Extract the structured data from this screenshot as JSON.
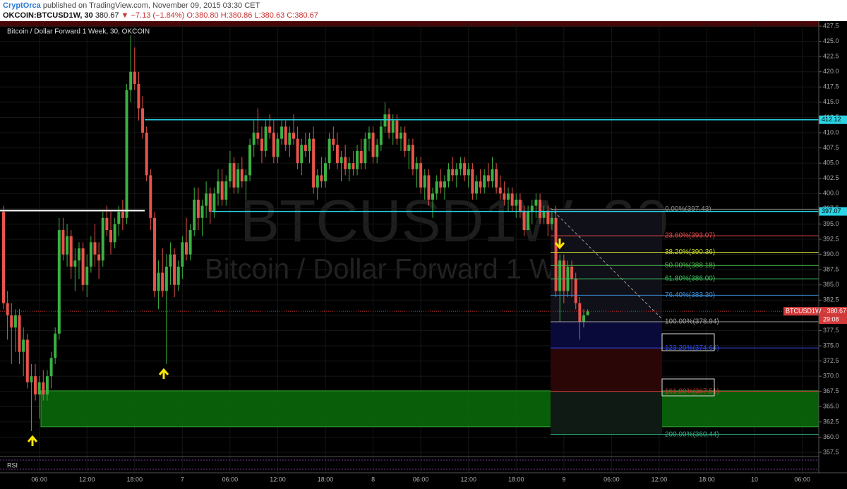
{
  "header": {
    "publisher": "CryptOrca",
    "published": "published on TradingView.com, November 09, 2015 03:30 CET"
  },
  "quote": {
    "symbol": "OKCOIN:BTCUSD1W, 30",
    "last": "380.67",
    "change": "▼ −7.13 (−1.84%)",
    "ohlc": "O:380.80 H:380.86 L:380.63 C:380.67"
  },
  "chart_data": {
    "type": "candlestick",
    "title": "Bitcoin / Dollar Forward 1 Week, 30, OKCOIN",
    "watermark": [
      "BTCUSD1W, 30",
      "Bitcoin / Dollar Forward 1 Week"
    ],
    "up_color": "#3cb043",
    "down_color": "#e8534a",
    "categories": [
      null,
      null,
      null,
      null,
      null,
      null,
      null,
      null,
      null,
      "06:00",
      null,
      null,
      null,
      null,
      null,
      null,
      null,
      null,
      null,
      null,
      null,
      "12:00",
      null,
      null,
      null,
      null,
      null,
      null,
      null,
      null,
      null,
      null,
      null,
      "18:00",
      null,
      null,
      null,
      null,
      null,
      null,
      null,
      null,
      null,
      null,
      null,
      "7",
      null,
      null,
      null,
      null,
      null,
      null,
      null,
      null,
      null,
      null,
      null,
      "06:00",
      null,
      null,
      null,
      null,
      null,
      null,
      null,
      null,
      null,
      null,
      null,
      "12:00",
      null,
      null,
      null,
      null,
      null,
      null,
      null,
      null,
      null,
      null,
      null,
      "18:00",
      null,
      null,
      null,
      null,
      null,
      null,
      null,
      null,
      null,
      null,
      null,
      "8",
      null,
      null,
      null,
      null,
      null,
      null,
      null,
      null,
      null,
      null,
      null,
      "06:00",
      null,
      null,
      null,
      null,
      null,
      null,
      null,
      null,
      null,
      null,
      null,
      "12:00",
      null,
      null,
      null,
      null,
      null,
      null,
      null,
      null,
      null,
      null,
      null,
      "18:00",
      null,
      null,
      null,
      null,
      null,
      null,
      null,
      null,
      null,
      null,
      null,
      "9",
      null,
      null,
      null,
      null,
      null,
      null,
      null,
      null,
      null,
      null,
      null,
      "06:00",
      null,
      null,
      null,
      null,
      null,
      null,
      null,
      null,
      null,
      null,
      null,
      "12:00",
      null,
      null,
      null,
      null,
      null,
      null,
      null,
      null,
      null,
      null,
      null,
      "18:00",
      null,
      null,
      null,
      null,
      null,
      null,
      null,
      null,
      null,
      null,
      null,
      "10",
      null,
      null,
      null,
      null,
      null,
      null,
      null,
      null,
      null,
      null,
      null,
      "06:00",
      null,
      null,
      null
    ],
    "candles": [
      [
        397,
        398,
        381,
        382
      ],
      [
        382,
        384,
        376,
        380
      ],
      [
        380,
        382,
        372,
        378
      ],
      [
        378,
        381,
        374,
        380
      ],
      [
        380,
        381,
        372,
        374
      ],
      [
        374,
        378,
        370,
        376
      ],
      [
        376,
        377,
        368,
        369
      ],
      [
        369,
        372,
        361,
        370
      ],
      [
        370,
        372,
        366,
        367
      ],
      [
        367,
        370,
        363,
        369
      ],
      [
        369,
        371,
        366,
        367
      ],
      [
        367,
        371,
        366,
        370
      ],
      [
        370,
        374,
        368,
        373
      ],
      [
        373,
        378,
        372,
        377
      ],
      [
        377,
        396,
        376,
        394
      ],
      [
        394,
        396,
        389,
        390
      ],
      [
        390,
        395,
        388,
        393
      ],
      [
        393,
        394,
        386,
        388
      ],
      [
        388,
        391,
        384,
        389
      ],
      [
        389,
        392,
        386,
        391
      ],
      [
        391,
        392,
        384,
        385
      ],
      [
        385,
        390,
        383,
        388
      ],
      [
        388,
        393,
        387,
        392
      ],
      [
        392,
        395,
        388,
        390
      ],
      [
        390,
        392,
        386,
        389
      ],
      [
        389,
        397,
        388,
        396
      ],
      [
        396,
        398,
        393,
        394
      ],
      [
        394,
        397,
        390,
        392
      ],
      [
        392,
        396,
        391,
        395
      ],
      [
        395,
        398,
        393,
        397
      ],
      [
        397,
        399,
        394,
        396
      ],
      [
        396,
        418,
        395,
        417
      ],
      [
        417,
        426,
        415,
        420
      ],
      [
        420,
        424,
        417,
        418
      ],
      [
        418,
        420,
        412,
        414
      ],
      [
        414,
        416,
        409,
        410
      ],
      [
        410,
        411,
        402,
        403
      ],
      [
        403,
        404,
        394,
        396
      ],
      [
        396,
        397,
        383,
        384
      ],
      [
        384,
        389,
        381,
        387
      ],
      [
        387,
        391,
        383,
        384
      ],
      [
        384,
        390,
        372,
        388
      ],
      [
        388,
        392,
        385,
        390
      ],
      [
        390,
        391,
        383,
        385
      ],
      [
        385,
        389,
        384,
        388
      ],
      [
        388,
        393,
        386,
        392
      ],
      [
        392,
        396,
        389,
        390
      ],
      [
        390,
        395,
        389,
        394
      ],
      [
        394,
        401,
        393,
        399
      ],
      [
        399,
        401,
        394,
        396
      ],
      [
        396,
        399,
        393,
        398
      ],
      [
        398,
        402,
        396,
        400
      ],
      [
        400,
        401,
        395,
        397
      ],
      [
        397,
        401,
        396,
        400
      ],
      [
        400,
        404,
        398,
        402
      ],
      [
        402,
        404,
        398,
        399
      ],
      [
        399,
        403,
        398,
        402
      ],
      [
        402,
        407,
        401,
        405
      ],
      [
        405,
        406,
        400,
        401
      ],
      [
        401,
        405,
        400,
        404
      ],
      [
        404,
        406,
        401,
        402
      ],
      [
        402,
        404,
        399,
        403
      ],
      [
        403,
        409,
        402,
        408
      ],
      [
        408,
        412,
        406,
        410
      ],
      [
        410,
        414,
        408,
        409
      ],
      [
        409,
        411,
        405,
        407
      ],
      [
        407,
        412,
        406,
        411
      ],
      [
        411,
        413,
        409,
        410
      ],
      [
        410,
        412,
        405,
        406
      ],
      [
        406,
        410,
        405,
        409
      ],
      [
        409,
        412,
        408,
        411
      ],
      [
        411,
        412,
        407,
        408
      ],
      [
        408,
        411,
        406,
        410
      ],
      [
        410,
        413,
        408,
        409
      ],
      [
        409,
        411,
        404,
        405
      ],
      [
        405,
        409,
        403,
        408
      ],
      [
        408,
        410,
        406,
        407
      ],
      [
        407,
        410,
        405,
        409
      ],
      [
        409,
        411,
        400,
        401
      ],
      [
        401,
        404,
        399,
        403
      ],
      [
        403,
        406,
        401,
        402
      ],
      [
        402,
        406,
        401,
        405
      ],
      [
        405,
        410,
        404,
        409
      ],
      [
        409,
        411,
        407,
        408
      ],
      [
        408,
        410,
        404,
        405
      ],
      [
        405,
        407,
        402,
        406
      ],
      [
        406,
        408,
        403,
        404
      ],
      [
        404,
        406,
        402,
        405
      ],
      [
        405,
        407,
        403,
        404
      ],
      [
        404,
        408,
        403,
        407
      ],
      [
        407,
        409,
        404,
        405
      ],
      [
        405,
        410,
        404,
        409
      ],
      [
        409,
        411,
        407,
        410
      ],
      [
        410,
        411,
        405,
        406
      ],
      [
        406,
        409,
        405,
        408
      ],
      [
        408,
        412,
        407,
        411
      ],
      [
        411,
        415,
        410,
        413
      ],
      [
        413,
        414,
        409,
        410
      ],
      [
        410,
        413,
        408,
        412
      ],
      [
        412,
        413,
        408,
        409
      ],
      [
        409,
        411,
        407,
        410
      ],
      [
        410,
        411,
        406,
        407
      ],
      [
        407,
        409,
        404,
        408
      ],
      [
        408,
        409,
        403,
        404
      ],
      [
        404,
        406,
        401,
        405
      ],
      [
        405,
        406,
        400,
        401
      ],
      [
        401,
        404,
        399,
        403
      ],
      [
        403,
        404,
        398,
        399
      ],
      [
        399,
        401,
        396,
        400
      ],
      [
        400,
        403,
        399,
        402
      ],
      [
        402,
        404,
        400,
        401
      ],
      [
        401,
        403,
        399,
        402
      ],
      [
        402,
        405,
        401,
        404
      ],
      [
        404,
        406,
        402,
        403
      ],
      [
        403,
        405,
        401,
        404
      ],
      [
        404,
        406,
        403,
        405
      ],
      [
        405,
        406,
        402,
        403
      ],
      [
        403,
        405,
        401,
        404
      ],
      [
        404,
        405,
        399,
        400
      ],
      [
        400,
        403,
        399,
        402
      ],
      [
        402,
        404,
        400,
        401
      ],
      [
        401,
        404,
        400,
        403
      ],
      [
        403,
        405,
        401,
        402
      ],
      [
        402,
        406,
        401,
        404
      ],
      [
        404,
        405,
        400,
        401
      ],
      [
        401,
        403,
        399,
        400
      ],
      [
        400,
        402,
        398,
        399
      ],
      [
        399,
        401,
        397,
        400
      ],
      [
        400,
        401,
        397,
        398
      ],
      [
        398,
        400,
        396,
        399
      ],
      [
        399,
        400,
        396,
        397
      ],
      [
        397,
        398,
        393,
        394
      ],
      [
        394,
        398,
        394,
        397
      ],
      [
        397,
        399,
        395,
        398
      ],
      [
        398,
        400,
        396,
        399
      ],
      [
        399,
        400,
        395,
        396
      ],
      [
        396,
        398,
        395,
        397
      ],
      [
        397,
        398,
        393,
        395
      ],
      [
        395,
        397,
        394,
        396
      ],
      [
        396,
        398,
        383,
        384
      ],
      [
        384,
        390,
        379,
        389
      ],
      [
        389,
        390,
        382,
        384
      ],
      [
        384,
        389,
        383,
        388
      ],
      [
        388,
        389,
        383,
        386
      ],
      [
        386,
        387,
        381,
        382
      ],
      [
        382,
        383,
        376,
        379
      ],
      [
        379,
        381,
        378,
        380
      ],
      [
        380,
        381,
        380,
        380.67
      ],
      null,
      null,
      null,
      null,
      null,
      null,
      null,
      null,
      null,
      null,
      null,
      null,
      null,
      null,
      null,
      null,
      null,
      null,
      null,
      null,
      null,
      null,
      null,
      null,
      null,
      null,
      null,
      null,
      null,
      null,
      null,
      null,
      null,
      null,
      null,
      null,
      null,
      null,
      null,
      null,
      null,
      null,
      null,
      null,
      null,
      null,
      null,
      null,
      null,
      null,
      null,
      null,
      null,
      null,
      null,
      null,
      null
    ],
    "ylim": [
      357.04,
      428.08
    ],
    "yticks": [
      {
        "value": 427.5,
        "label": "427.5"
      },
      {
        "value": 425,
        "label": "425.0"
      },
      {
        "value": 422.5,
        "label": "422.5"
      },
      {
        "value": 420,
        "label": "420.0"
      },
      {
        "value": 417.5,
        "label": "417.5"
      },
      {
        "value": 415,
        "label": "415.0"
      },
      {
        "value": 412.5,
        "label": "412.5"
      },
      {
        "value": 410,
        "label": "410.0"
      },
      {
        "value": 407.5,
        "label": "407.5"
      },
      {
        "value": 405,
        "label": "405.0"
      },
      {
        "value": 402.5,
        "label": "402.5"
      },
      {
        "value": 400,
        "label": "400.0"
      },
      {
        "value": 397.5,
        "label": "397.5"
      },
      {
        "value": 395,
        "label": "395.0"
      },
      {
        "value": 392.5,
        "label": "392.5"
      },
      {
        "value": 390,
        "label": "390.0"
      },
      {
        "value": 387.5,
        "label": "387.5"
      },
      {
        "value": 385,
        "label": "385.0"
      },
      {
        "value": 382.5,
        "label": "382.5"
      },
      {
        "value": 380,
        "label": "380.0"
      },
      {
        "value": 377.5,
        "label": "377.5"
      },
      {
        "value": 375,
        "label": "375.0"
      },
      {
        "value": 372.5,
        "label": "372.5"
      },
      {
        "value": 370,
        "label": "370.0"
      },
      {
        "value": 367.5,
        "label": "367.5"
      },
      {
        "value": 365,
        "label": "365.0"
      },
      {
        "value": 362.5,
        "label": "362.5"
      },
      {
        "value": 360,
        "label": "360.0"
      },
      {
        "value": 357.5,
        "label": "357.5"
      }
    ],
    "grid": true,
    "levels": [
      {
        "price": 412.12,
        "label": "412.12",
        "color": "#2ad4e4"
      },
      {
        "price": 397.07,
        "label": "397.07",
        "color": "#2ad4e4"
      }
    ],
    "white_line": {
      "price": 397.2,
      "color": "#ffffff"
    },
    "last_price": {
      "price": 380.67,
      "label": "BTCUSD1W · 380.67",
      "countdown": "29:08",
      "color": "#d43a3a"
    },
    "zone": {
      "top": 367.6,
      "bottom": 361.7,
      "color": "#0a6e0a"
    },
    "fib": [
      {
        "price": 397.43,
        "label": "0.00%(397.43)",
        "color": "#8a8a8a"
      },
      {
        "price": 393.07,
        "label": "23.60%(393.07)",
        "color": "#e04848"
      },
      {
        "price": 390.36,
        "label": "38.20%(390.36)",
        "color": "#c8d82e"
      },
      {
        "price": 388.18,
        "label": "50.00%(388.18)",
        "color": "#4cc04c"
      },
      {
        "price": 386.0,
        "label": "61.80%(386.00)",
        "color": "#3cc060"
      },
      {
        "price": 383.3,
        "label": "76.40%(383.30)",
        "color": "#3a90d8"
      },
      {
        "price": 378.94,
        "label": "100.00%(378.94)",
        "color": "#a0a0a0"
      },
      {
        "price": 374.64,
        "label": "123.20%(374.64)",
        "color": "#3048e0"
      },
      {
        "price": 367.51,
        "label": "161.80%(367.51)",
        "color": "#cc3838"
      },
      {
        "price": 360.44,
        "label": "200.00%(360.44)",
        "color": "#30b080"
      }
    ],
    "rsi_label": "RSI"
  }
}
